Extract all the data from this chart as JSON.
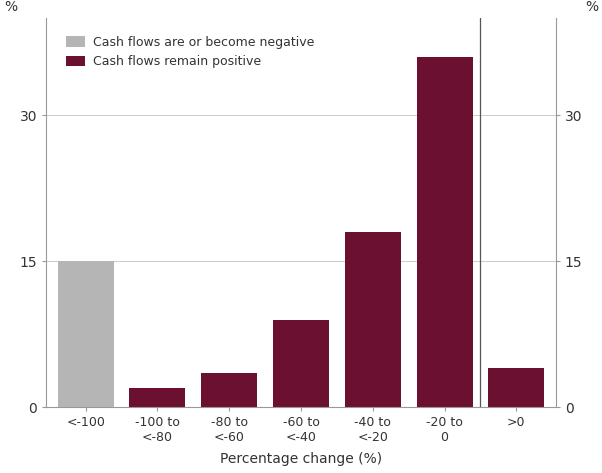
{
  "categories": [
    "<-100",
    "-100 to\n<-80",
    "-80 to\n<-60",
    "-60 to\n<-40",
    "-40 to\n<-20",
    "-20 to\n0",
    ">0"
  ],
  "values": [
    15,
    2,
    3.5,
    9,
    18,
    36,
    4
  ],
  "bar_colors": [
    "#b5b5b5",
    "#6b1030",
    "#6b1030",
    "#6b1030",
    "#6b1030",
    "#6b1030",
    "#6b1030"
  ],
  "legend_labels": [
    "Cash flows are or become negative",
    "Cash flows remain positive"
  ],
  "legend_colors": [
    "#b5b5b5",
    "#6b1030"
  ],
  "xlabel": "Percentage change (%)",
  "ylabel_left": "%",
  "ylabel_right": "%",
  "yticks": [
    0,
    15,
    30
  ],
  "ylim": [
    0,
    40
  ],
  "vline_x": 5.5,
  "background_color": "#ffffff",
  "bar_width": 0.78
}
